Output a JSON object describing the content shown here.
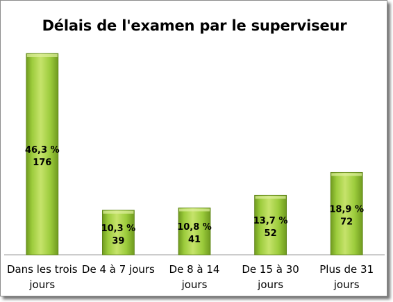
{
  "chart_data": {
    "type": "bar",
    "title": "Délais de l'examen par le superviseur",
    "categories": [
      [
        "Dans les trois",
        "jours"
      ],
      [
        "De 4 à 7 jours"
      ],
      [
        "De 8 à 14",
        "jours"
      ],
      [
        "De 15 à 30",
        "jours"
      ],
      [
        "Plus de 31",
        "jours"
      ]
    ],
    "series": [
      {
        "values": [
          176,
          39,
          41,
          52,
          72
        ],
        "percent_labels": [
          "46,3 %",
          "10,3 %",
          "10,8 %",
          "13,7 %",
          "18,9 %"
        ]
      }
    ],
    "xlabel": "",
    "ylabel": "",
    "ylim": [
      0,
      176
    ],
    "grid": false,
    "legend": "none",
    "colors": {
      "bar_light": "#c6e36b",
      "bar_mid": "#9ccc3c",
      "bar_dark": "#6f9a1f",
      "bar_edge": "#5d8218"
    }
  }
}
